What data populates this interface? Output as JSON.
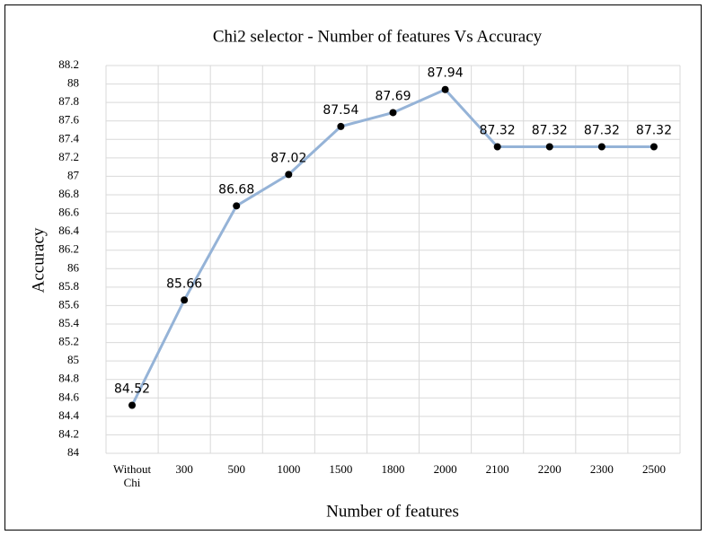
{
  "chart_data": {
    "type": "line",
    "title": "Chi2 selector - Number of features Vs Accuracy",
    "x_label": "Number of features",
    "y_label": "Accuracy",
    "categories": [
      "Without Chi",
      "300",
      "500",
      "1000",
      "1500",
      "1800",
      "2000",
      "2100",
      "2200",
      "2300",
      "2500"
    ],
    "series": [
      {
        "name": "Accuracy",
        "color": "#95b3d7",
        "marker_color": "#000000",
        "values": [
          84.52,
          85.66,
          86.68,
          87.02,
          87.54,
          87.69,
          87.94,
          87.32,
          87.32,
          87.32,
          87.32
        ]
      }
    ],
    "ylim": [
      84,
      88.2
    ],
    "yticks": [
      84,
      84.2,
      84.4,
      84.6,
      84.8,
      85,
      85.2,
      85.4,
      85.6,
      85.8,
      86,
      86.2,
      86.4,
      86.6,
      86.8,
      87,
      87.2,
      87.4,
      87.6,
      87.8,
      88,
      88.2
    ],
    "grid": true
  }
}
